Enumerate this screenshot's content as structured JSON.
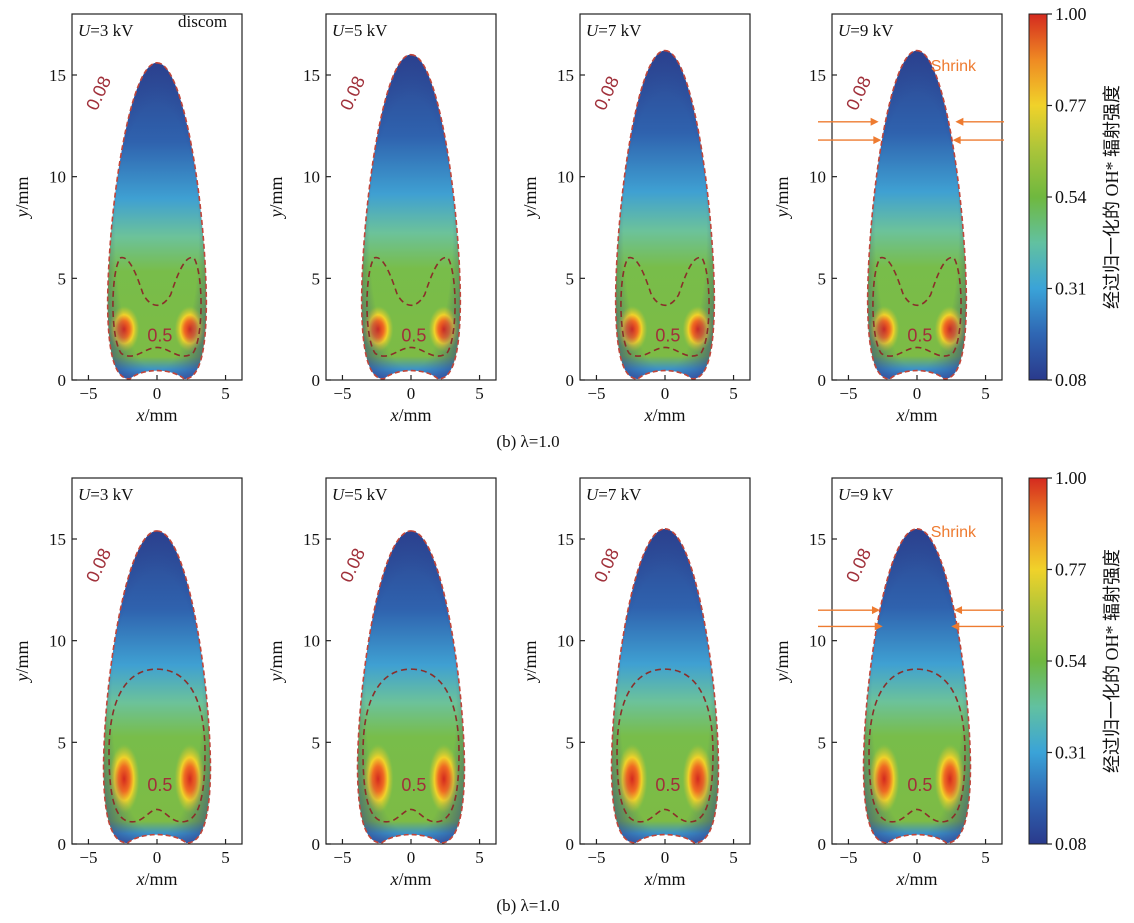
{
  "chart_data": {
    "type": "heatmap",
    "description_kind": "flame OH* chemiluminescence contour maps",
    "rows": [
      {
        "caption": "(b) λ=1.0",
        "panels": [
          {
            "voltage_label": "=3 kV",
            "annotation": ""
          },
          {
            "voltage_label": "=5 kV",
            "annotation": ""
          },
          {
            "voltage_label": "=7 kV",
            "annotation": ""
          },
          {
            "voltage_label": "=9 kV",
            "annotation": "Shrink"
          }
        ]
      },
      {
        "caption": "(b) λ=1.0",
        "panels": [
          {
            "voltage_label": "=3 kV",
            "annotation": ""
          },
          {
            "voltage_label": "=5 kV",
            "annotation": ""
          },
          {
            "voltage_label": "=7 kV",
            "annotation": ""
          },
          {
            "voltage_label": "=9 kV",
            "annotation": "Shrink"
          }
        ]
      }
    ],
    "variable_prefix": "U",
    "xlabel_var": "x",
    "xlabel_unit": "/mm",
    "ylabel_var": "y",
    "ylabel_unit": "/mm",
    "xlim": [
      -6.2,
      6.2
    ],
    "ylim": [
      0,
      18
    ],
    "xticks": [
      -5,
      0,
      5
    ],
    "xtick_labels": [
      "−5",
      "0",
      "5"
    ],
    "yticks": [
      0,
      5,
      10,
      15
    ],
    "ytick_labels": [
      "0",
      "5",
      "10",
      "15"
    ],
    "contour_levels": [
      "0.08",
      "0.5"
    ],
    "colorbar": {
      "label": "经过归一化的 OH* 辐射强度",
      "ticks": [
        "1.00",
        "0.77",
        "0.54",
        "0.31",
        "0.08"
      ],
      "range": [
        0.08,
        1.0
      ],
      "colors": [
        "#2a3a8c",
        "#2f66b3",
        "#3aa3d8",
        "#62c1a0",
        "#6fb83f",
        "#a9c43a",
        "#f0d22a",
        "#ef8a23",
        "#d42a1f"
      ]
    },
    "flame_tip_height": [
      [
        15.6,
        16.0,
        16.2,
        16.2
      ],
      [
        15.4,
        15.4,
        15.5,
        15.5
      ]
    ],
    "overlay_text": "discom"
  }
}
